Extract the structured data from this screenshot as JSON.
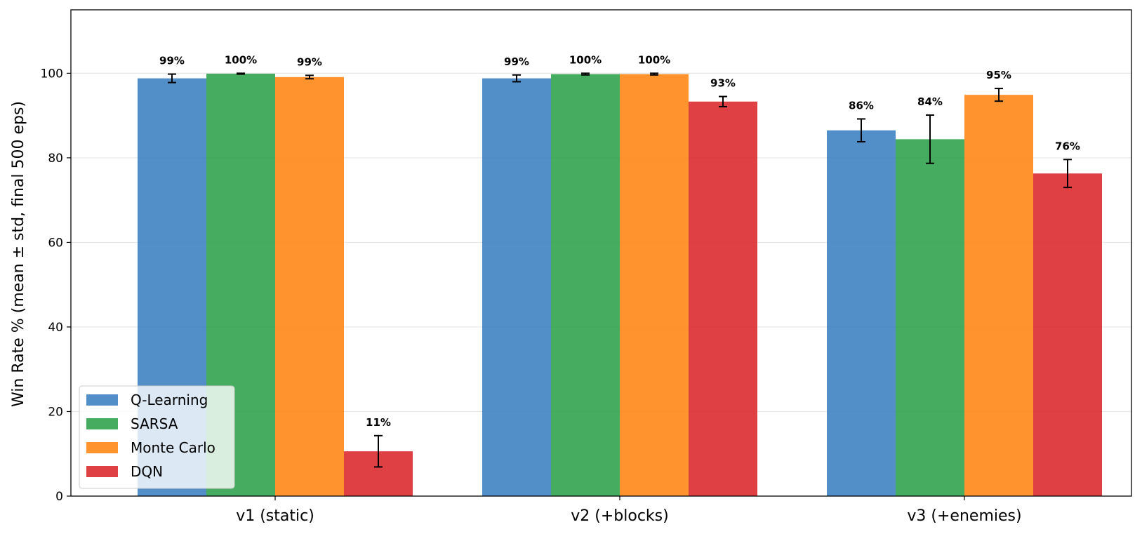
{
  "chart_data": {
    "type": "bar",
    "title": "",
    "xlabel": "",
    "ylabel": "Win Rate % (mean ± std, final 500 eps)",
    "categories": [
      "v1 (static)",
      "v2 (+blocks)",
      "v3 (+enemies)"
    ],
    "ylim": [
      0,
      115
    ],
    "yticks": [
      0,
      20,
      40,
      60,
      80,
      100
    ],
    "grid": "horizontal",
    "legend_position": "lower-left",
    "series": [
      {
        "name": "Q-Learning",
        "color": "#3a7ebf",
        "values": [
          98.8,
          98.8,
          86.5
        ],
        "std": [
          1.0,
          0.8,
          2.7
        ],
        "labels": [
          "99%",
          "99%",
          "86%"
        ]
      },
      {
        "name": "SARSA",
        "color": "#2ca049",
        "values": [
          99.9,
          99.8,
          84.4
        ],
        "std": [
          0.1,
          0.2,
          5.7
        ],
        "labels": [
          "100%",
          "100%",
          "84%"
        ]
      },
      {
        "name": "Monte Carlo",
        "color": "#ff8512",
        "values": [
          99.1,
          99.8,
          94.9
        ],
        "std": [
          0.4,
          0.2,
          1.5
        ],
        "labels": [
          "99%",
          "100%",
          "95%"
        ]
      },
      {
        "name": "DQN",
        "color": "#d9252a",
        "values": [
          10.6,
          93.3,
          76.3
        ],
        "std": [
          3.7,
          1.2,
          3.3
        ],
        "labels": [
          "11%",
          "93%",
          "76%"
        ]
      }
    ]
  }
}
